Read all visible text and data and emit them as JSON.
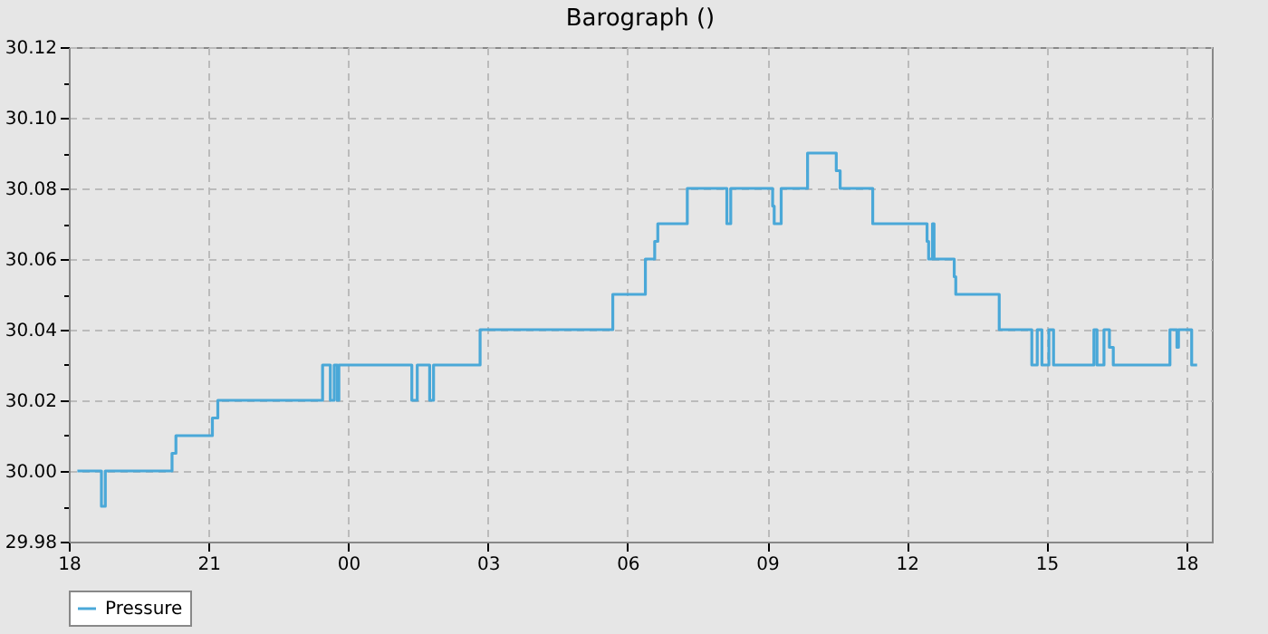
{
  "chart_data": {
    "type": "step",
    "title": "Barograph ()",
    "x": [
      "--01-01T18:11",
      "--01-01T18:42",
      "--01-01T18:47",
      "--01-01T20:13",
      "--01-01T20:18",
      "--01-01T21:05",
      "--01-01T21:12",
      "--01-01T23:27",
      "--01-01T23:37",
      "--01-01T23:42",
      "--01-01T23:46",
      "--01-01T23:48",
      "--01-02T01:22",
      "--01-02T01:29",
      "--01-02T01:45",
      "--01-02T01:50",
      "--01-02T02:50",
      "--01-02T05:41",
      "--01-02T06:23",
      "--01-02T06:35",
      "--01-02T06:39",
      "--01-02T07:17",
      "--01-02T08:08",
      "--01-02T08:13",
      "--01-02T09:07",
      "--01-02T09:09",
      "--01-02T09:18",
      "--01-02T09:52",
      "--01-02T10:29",
      "--01-02T10:34",
      "--01-02T11:16",
      "--01-02T12:26",
      "--01-02T12:28",
      "--01-02T12:33",
      "--01-02T12:35",
      "--01-02T13:01",
      "--01-02T13:03",
      "--01-02T13:59",
      "--01-02T14:41",
      "--01-02T14:48",
      "--01-02T14:54",
      "--01-02T15:03",
      "--01-02T15:09",
      "--01-02T16:01",
      "--01-02T16:05",
      "--01-02T16:14",
      "--01-02T16:21",
      "--01-02T16:26",
      "--01-02T17:39",
      "--01-02T17:48",
      "--01-02T17:50",
      "--01-02T18:07",
      "--01-02T18:14"
    ],
    "series": [
      {
        "name": "Pressure",
        "color": "#4aa8d8",
        "values": [
          30.0,
          29.99,
          30.0,
          30.005,
          30.01,
          30.015,
          30.02,
          30.03,
          30.02,
          30.03,
          30.02,
          30.03,
          30.02,
          30.03,
          30.02,
          30.03,
          30.04,
          30.05,
          30.06,
          30.065,
          30.07,
          30.08,
          30.07,
          30.08,
          30.075,
          30.07,
          30.08,
          30.09,
          30.085,
          30.08,
          30.07,
          30.065,
          30.06,
          30.07,
          30.06,
          30.055,
          30.05,
          30.04,
          30.03,
          30.04,
          30.03,
          30.04,
          30.03,
          30.04,
          30.03,
          30.04,
          30.035,
          30.03,
          30.04,
          30.035,
          30.04,
          30.03,
          30.03
        ]
      }
    ],
    "xlim": [
      "--01-01T18:00",
      "--01-02T18:33"
    ],
    "xticks": [
      {
        "value": "--01-01T18:00",
        "label": "18"
      },
      {
        "value": "--01-01T21:00",
        "label": "21"
      },
      {
        "value": "--01-02T00:00",
        "label": "00"
      },
      {
        "value": "--01-02T03:00",
        "label": "03"
      },
      {
        "value": "--01-02T06:00",
        "label": "06"
      },
      {
        "value": "--01-02T09:00",
        "label": "09"
      },
      {
        "value": "--01-02T12:00",
        "label": "12"
      },
      {
        "value": "--01-02T15:00",
        "label": "15"
      },
      {
        "value": "--01-02T18:00",
        "label": "18"
      }
    ],
    "ylim": [
      29.98,
      30.12
    ],
    "yticks": [
      29.98,
      {
        "value": 29.99,
        "label": null
      },
      {
        "value": 30.0,
        "label": "30.00"
      },
      {
        "value": 30.01,
        "label": null
      },
      30.02,
      {
        "value": 30.03,
        "label": null
      },
      30.04,
      {
        "value": 30.05,
        "label": null
      },
      30.06,
      {
        "value": 30.07,
        "label": null
      },
      30.08,
      {
        "value": 30.09,
        "label": null
      },
      {
        "value": 30.1,
        "label": "30.10"
      },
      {
        "value": 30.11,
        "label": null
      },
      30.12
    ],
    "grid": true,
    "legend": "bottom",
    "line_style": "solid",
    "marker": "none"
  }
}
